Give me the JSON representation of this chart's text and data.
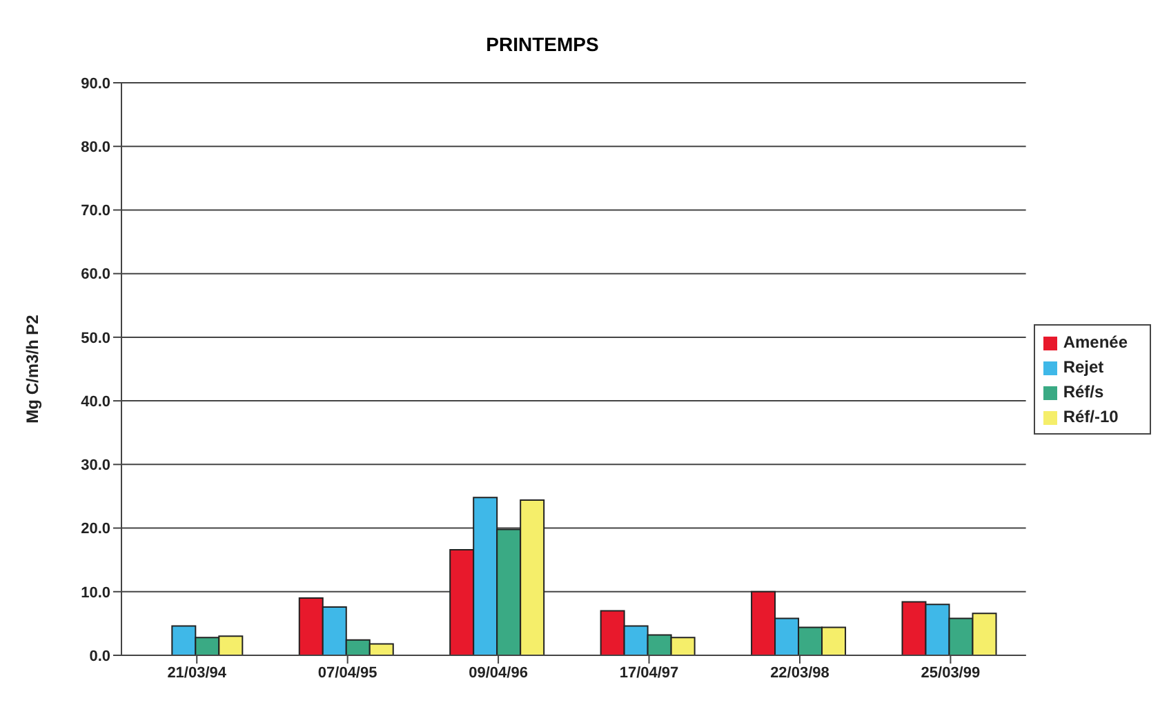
{
  "chart_data": {
    "type": "bar",
    "title": "PRINTEMPS",
    "ylabel": "Mg C/m3/h P2",
    "categories": [
      "21/03/94",
      "07/04/95",
      "09/04/96",
      "17/04/97",
      "22/03/98",
      "25/03/99"
    ],
    "series": [
      {
        "name": "Amenée",
        "color": "#e8192c",
        "values": [
          null,
          9.0,
          16.6,
          7.0,
          10.0,
          8.4
        ]
      },
      {
        "name": "Rejet",
        "color": "#3fb8e8",
        "values": [
          4.6,
          7.6,
          24.8,
          4.6,
          5.8,
          8.0
        ]
      },
      {
        "name": "Réf/s",
        "color": "#3aaa84",
        "values": [
          2.8,
          2.4,
          19.8,
          3.2,
          4.4,
          5.8
        ]
      },
      {
        "name": "Réf/-10",
        "color": "#f5ee6a",
        "values": [
          3.0,
          1.8,
          24.4,
          2.8,
          4.4,
          6.6
        ]
      }
    ],
    "ylim": [
      0,
      90
    ],
    "yticks": [
      {
        "value": 0,
        "label": "0.0"
      },
      {
        "value": 10,
        "label": "10.0"
      },
      {
        "value": 20,
        "label": "20.0"
      },
      {
        "value": 30,
        "label": "30.0"
      },
      {
        "value": 40,
        "label": "40.0"
      },
      {
        "value": 50,
        "label": "50.0"
      },
      {
        "value": 60,
        "label": "60.0"
      },
      {
        "value": 70,
        "label": "70.0"
      },
      {
        "value": 80,
        "label": "80.0"
      },
      {
        "value": 90,
        "label": "90.0"
      }
    ],
    "grid": "y",
    "legend": "right"
  }
}
